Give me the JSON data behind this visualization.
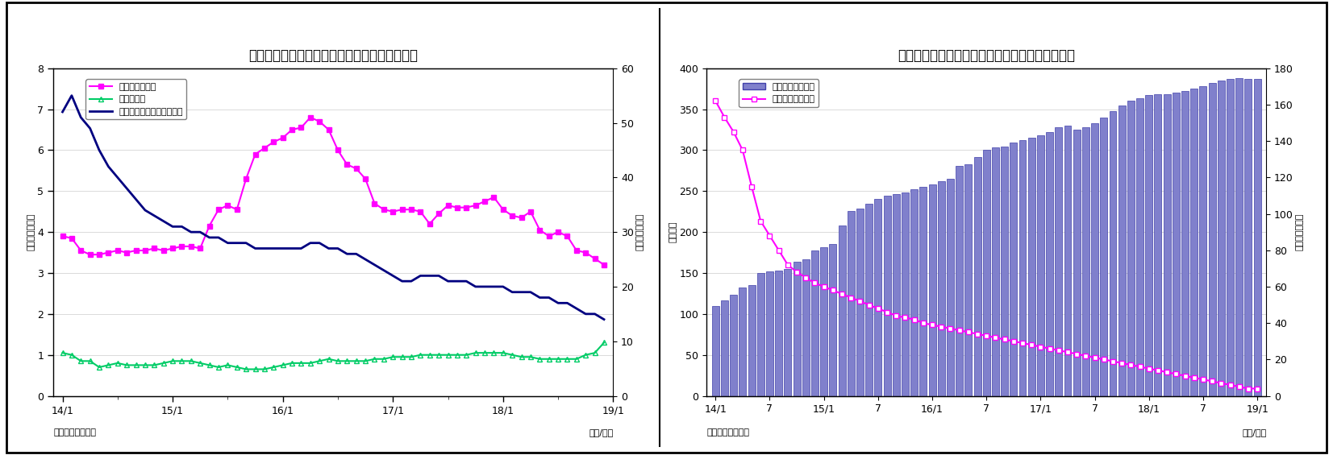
{
  "chart6": {
    "title": "（図表６）　マネタリーベース伸び率（平残）",
    "ylabel_left": "（前年比、％）",
    "ylabel_right": "（前年比、％）",
    "xlabel": "（年/月）",
    "source": "（資料）日本銀行",
    "ylim_left": [
      0,
      8
    ],
    "ylim_right": [
      0,
      60
    ],
    "yticks_left": [
      0,
      1,
      2,
      3,
      4,
      5,
      6,
      7,
      8
    ],
    "yticks_right": [
      0,
      10,
      20,
      30,
      40,
      50,
      60
    ],
    "xtick_labels": [
      "14/1",
      "15/1",
      "16/1",
      "17/1",
      "18/1",
      "19/1"
    ],
    "legend_entries": [
      "日銀券発行残高",
      "貨幣流通高",
      "マネタリーベース（右軸）"
    ],
    "nishin_color": "#FF00FF",
    "kahei_color": "#00CC66",
    "monetary_color": "#000080",
    "nishin_data_x": [
      0,
      1,
      2,
      3,
      4,
      5,
      6,
      7,
      8,
      9,
      10,
      11,
      12,
      13,
      14,
      15,
      16,
      17,
      18,
      19,
      20,
      21,
      22,
      23,
      24,
      25,
      26,
      27,
      28,
      29,
      30,
      31,
      32,
      33,
      34,
      35,
      36,
      37,
      38,
      39,
      40,
      41,
      42,
      43,
      44,
      45,
      46,
      47,
      48,
      49,
      50,
      51,
      52,
      53,
      54,
      55,
      56,
      57,
      58,
      59
    ],
    "nishin_data_y": [
      3.9,
      3.85,
      3.55,
      3.45,
      3.45,
      3.5,
      3.55,
      3.5,
      3.55,
      3.55,
      3.6,
      3.55,
      3.6,
      3.65,
      3.65,
      3.6,
      4.15,
      4.55,
      4.65,
      4.55,
      5.3,
      5.9,
      6.05,
      6.2,
      6.3,
      6.5,
      6.55,
      6.8,
      6.7,
      6.5,
      6.0,
      5.65,
      5.55,
      5.3,
      4.7,
      4.55,
      4.5,
      4.55,
      4.55,
      4.5,
      4.2,
      4.45,
      4.65,
      4.6,
      4.6,
      4.65,
      4.75,
      4.85,
      4.55,
      4.4,
      4.35,
      4.5,
      4.05,
      3.9,
      4.0,
      3.9,
      3.55,
      3.5,
      3.35,
      3.2
    ],
    "kahei_data_y": [
      1.05,
      1.0,
      0.85,
      0.85,
      0.7,
      0.75,
      0.8,
      0.75,
      0.75,
      0.75,
      0.75,
      0.8,
      0.85,
      0.85,
      0.85,
      0.8,
      0.75,
      0.7,
      0.75,
      0.7,
      0.65,
      0.65,
      0.65,
      0.7,
      0.75,
      0.8,
      0.8,
      0.8,
      0.85,
      0.9,
      0.85,
      0.85,
      0.85,
      0.85,
      0.9,
      0.9,
      0.95,
      0.95,
      0.95,
      1.0,
      1.0,
      1.0,
      1.0,
      1.0,
      1.0,
      1.05,
      1.05,
      1.05,
      1.05,
      1.0,
      0.95,
      0.95,
      0.9,
      0.9,
      0.9,
      0.9,
      0.9,
      1.0,
      1.05,
      1.3
    ],
    "monetary_data_y": [
      7.0,
      7.3,
      6.8,
      6.5,
      6.0,
      5.6,
      5.4,
      5.1,
      4.8,
      4.6,
      4.4,
      4.3,
      4.2,
      4.1,
      4.05,
      4.0,
      3.9,
      3.8,
      3.75,
      3.75,
      3.7,
      3.65,
      3.65,
      3.65,
      3.65,
      3.7,
      3.7,
      3.72,
      3.7,
      3.65,
      3.58,
      3.52,
      3.4,
      3.3,
      3.15,
      3.02,
      2.9,
      2.85,
      2.85,
      2.88,
      2.85,
      2.82,
      2.8,
      2.78,
      2.75,
      2.72,
      2.7,
      2.68,
      2.65,
      2.6,
      2.55,
      2.5,
      2.4,
      2.35,
      2.25,
      2.2,
      2.1,
      2.0,
      1.9,
      1.8
    ],
    "monetary_data_y_scaled": [
      52,
      55,
      51,
      49,
      45,
      42,
      40,
      38,
      36,
      34,
      33,
      32,
      31,
      31,
      30,
      30,
      29,
      29,
      28,
      28,
      28,
      27,
      27,
      27,
      27,
      27,
      27,
      28,
      28,
      27,
      27,
      26,
      26,
      25,
      24,
      23,
      22,
      21,
      21,
      22,
      22,
      22,
      21,
      21,
      21,
      20,
      20,
      20,
      20,
      19,
      19,
      19,
      18,
      18,
      17,
      17,
      16,
      15,
      15,
      14
    ]
  },
  "chart7": {
    "title": "（図表７）　日銀当座預金残高（平残）と伸び率",
    "ylabel_left": "（兆円）",
    "ylabel_right": "（前年比、％）",
    "xlabel": "（年/月）",
    "source": "（資料）日本銀行",
    "ylim_left": [
      0,
      400
    ],
    "ylim_right": [
      0,
      180
    ],
    "yticks_left": [
      0,
      50,
      100,
      150,
      200,
      250,
      300,
      350,
      400
    ],
    "yticks_right": [
      0,
      20,
      40,
      60,
      80,
      100,
      120,
      140,
      160,
      180
    ],
    "xtick_labels": [
      "14/1",
      "7",
      "15/1",
      "7",
      "16/1",
      "7",
      "17/1",
      "7",
      "18/1",
      "7",
      "19/1"
    ],
    "bar_color": "#8080CC",
    "bar_edge_color": "#4040AA",
    "line_color": "#FF00FF",
    "legend_entries": [
      "日銀当座預金残高",
      "同伸び率（右軸）"
    ],
    "bar_data_y": [
      110,
      117,
      123,
      132,
      135,
      150,
      152,
      153,
      155,
      164,
      167,
      178,
      181,
      185,
      208,
      226,
      229,
      235,
      240,
      244,
      246,
      248,
      252,
      255,
      258,
      262,
      265,
      281,
      283,
      292,
      300,
      303,
      304,
      309,
      312,
      315,
      318,
      322,
      328,
      330,
      325,
      328,
      333,
      340,
      348,
      355,
      360,
      363,
      367,
      368,
      368,
      370,
      372,
      375,
      378,
      382,
      385,
      387,
      388,
      387,
      387
    ],
    "line_data_y": [
      162,
      153,
      145,
      135,
      115,
      96,
      88,
      80,
      72,
      68,
      65,
      62,
      60,
      58,
      56,
      54,
      52,
      50,
      48,
      46,
      44,
      43,
      42,
      40,
      39,
      38,
      37,
      36,
      35,
      34,
      33,
      32,
      31,
      30,
      29,
      28,
      27,
      26,
      25,
      24,
      23,
      22,
      21,
      20,
      19,
      18,
      17,
      16,
      15,
      14,
      13,
      12,
      11,
      10,
      9,
      8,
      7,
      6,
      5,
      4,
      4
    ]
  }
}
